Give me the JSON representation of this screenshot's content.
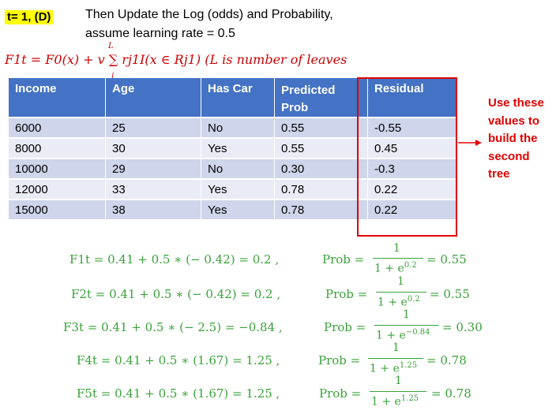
{
  "header": {
    "tag": "t= 1, (D)",
    "line1": "Then Update the Log (odds) and Probability,",
    "line2": "assume learning rate = 0.5"
  },
  "formula": {
    "text": "F1t = F0(x) + v ∑ rj1I(x ∈ Rj1)  (L is number of leaves",
    "sum_upper": "L",
    "sum_lower": "j"
  },
  "table": {
    "headers": [
      "Income",
      "Age",
      "Has Car",
      "Predicted Prob",
      "Residual"
    ],
    "rows": [
      [
        "6000",
        "25",
        "No",
        "0.55",
        "-0.55"
      ],
      [
        "8000",
        "30",
        "Yes",
        "0.55",
        "0.45"
      ],
      [
        "10000",
        "29",
        "No",
        "0.30",
        "-0.3"
      ],
      [
        "12000",
        "33",
        "Yes",
        "0.78",
        "0.22"
      ],
      [
        "15000",
        "38",
        "Yes",
        "0.78",
        "0.22"
      ]
    ]
  },
  "note": "Use these values to build the second tree",
  "colors": {
    "accent_red": "#e00000",
    "header_blue": "#4472c4",
    "equation_green": "#3aa23a",
    "highlight_yellow": "#ffff00"
  },
  "equations": [
    {
      "lhs": "F1t = 0.41 + 0.5 ∗ (− 0.42) = 0.2 ,",
      "prob_label": "Prob =",
      "numerator": "1",
      "denominator": "1 + e",
      "exponent": "0.2",
      "result": "= 0.55"
    },
    {
      "lhs": "F2t = 0.41 + 0.5 ∗ (− 0.42) = 0.2 ,",
      "prob_label": "Prob =",
      "numerator": "1",
      "denominator": "1 + e",
      "exponent": "0.2",
      "result": "= 0.55"
    },
    {
      "lhs": "F3t = 0.41 + 0.5 ∗ (− 2.5) = −0.84 ,",
      "prob_label": "Prob =",
      "numerator": "1",
      "denominator": "1 + e",
      "exponent": "−0.84",
      "result": "= 0.30"
    },
    {
      "lhs": "F4t = 0.41 + 0.5 ∗ (1.67) = 1.25 ,",
      "prob_label": "Prob =",
      "numerator": "1",
      "denominator": "1 + e",
      "exponent": "1.25",
      "result": "= 0.78"
    },
    {
      "lhs": "F5t = 0.41 + 0.5 ∗ (1.67) = 1.25 ,",
      "prob_label": "Prob =",
      "numerator": "1",
      "denominator": "1 + e",
      "exponent": "1.25",
      "result": "= 0.78"
    }
  ]
}
